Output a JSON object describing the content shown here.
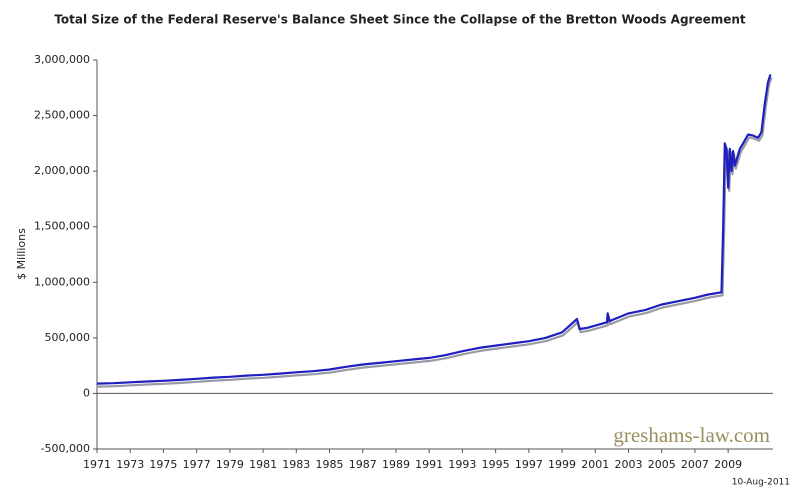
{
  "chart_data": {
    "type": "line",
    "title": "Total Size of the Federal Reserve's Balance Sheet Since the Collapse of the Bretton Woods Agreement",
    "y_label": "$ Millions",
    "watermark": "greshams-law.com",
    "date_note": "10-Aug-2011",
    "color": "#1f1fbf",
    "x": [
      1971,
      1972,
      1973,
      1974,
      1975,
      1976,
      1977,
      1978,
      1979,
      1980,
      1981,
      1982,
      1983,
      1984,
      1985,
      1986,
      1987,
      1988,
      1989,
      1990,
      1991,
      1992,
      1993,
      1994,
      1995,
      1996,
      1997,
      1998,
      1999,
      1999.9,
      2000.05,
      2000.5,
      2001,
      2001.7,
      2001.75,
      2001.85,
      2002,
      2003,
      2004,
      2005,
      2006,
      2007,
      2007.8,
      2008.6,
      2008.7,
      2008.8,
      2008.9,
      2009.0,
      2009.1,
      2009.2,
      2009.3,
      2009.4,
      2009.5,
      2009.7,
      2009.9,
      2010.2,
      2010.5,
      2010.8,
      2011.0,
      2011.2,
      2011.4,
      2011.55
    ],
    "values": [
      88000,
      92000,
      100000,
      107000,
      114000,
      122000,
      132000,
      142000,
      150000,
      160000,
      168000,
      178000,
      190000,
      200000,
      215000,
      240000,
      260000,
      275000,
      290000,
      305000,
      320000,
      345000,
      380000,
      410000,
      430000,
      450000,
      470000,
      500000,
      550000,
      670000,
      580000,
      590000,
      610000,
      640000,
      720000,
      650000,
      660000,
      720000,
      750000,
      800000,
      830000,
      860000,
      890000,
      910000,
      1500000,
      2250000,
      2200000,
      1850000,
      2200000,
      2000000,
      2180000,
      2050000,
      2100000,
      2200000,
      2250000,
      2330000,
      2320000,
      2300000,
      2350000,
      2600000,
      2800000,
      2870000
    ],
    "xlim": [
      1971,
      2011.7
    ],
    "xticks": [
      1971,
      1973,
      1975,
      1977,
      1979,
      1981,
      1983,
      1985,
      1987,
      1989,
      1991,
      1993,
      1995,
      1997,
      1999,
      2001,
      2003,
      2005,
      2007,
      2009
    ],
    "ylim": [
      -500000,
      3000000
    ],
    "yticks": [
      {
        "value": -500000,
        "label": "-500,000"
      },
      0,
      {
        "value": 500000,
        "label": "500,000"
      },
      {
        "value": 1000000,
        "label": "1,000,000"
      },
      {
        "value": 1500000,
        "label": "1,500,000"
      },
      {
        "value": 2000000,
        "label": "2,000,000"
      },
      {
        "value": 2500000,
        "label": "2,500,000"
      },
      {
        "value": 3000000,
        "label": "3,000,000"
      }
    ]
  }
}
